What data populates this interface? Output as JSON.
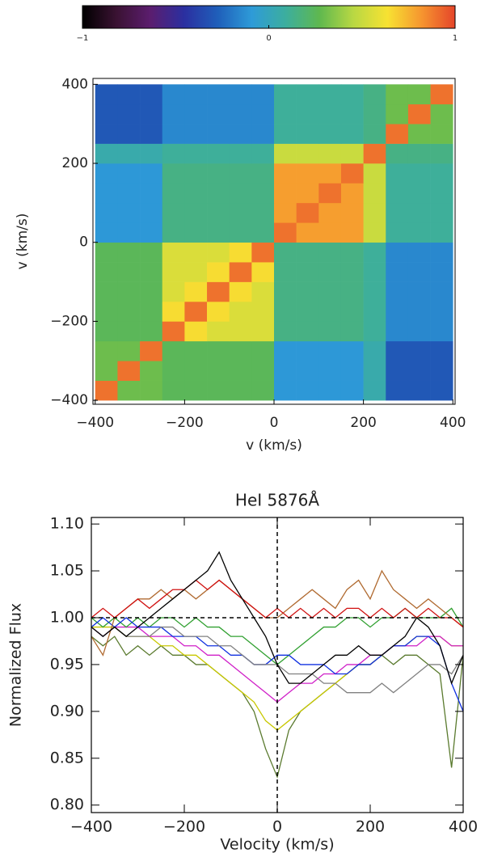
{
  "chart_data": [
    {
      "type": "colorbar",
      "xlim": [
        -1,
        1
      ],
      "xticks": [
        {
          "value": -1,
          "label": "−1"
        },
        0,
        1
      ],
      "colormap": [
        "#000000",
        "#3a1232",
        "#5b1d6e",
        "#2b2fa0",
        "#1f5fba",
        "#2e9bd8",
        "#3cae9e",
        "#5fb84f",
        "#b9d843",
        "#f7e232",
        "#f6962f",
        "#e5452a"
      ]
    },
    {
      "type": "heatmap",
      "xlabel": "v (km/s)",
      "ylabel": "v (km/s)",
      "xlim": [
        -405,
        405
      ],
      "ylim": [
        -410,
        415
      ],
      "xticks": [
        {
          "value": -400,
          "label": "−400"
        },
        {
          "value": -200,
          "label": "−200"
        },
        0,
        200,
        400
      ],
      "yticks": [
        {
          "value": -400,
          "label": "−400"
        },
        {
          "value": -200,
          "label": "−200"
        },
        0,
        200,
        400
      ],
      "x": [
        -375,
        -325,
        -275,
        -225,
        -175,
        -125,
        -75,
        -25,
        25,
        75,
        125,
        175,
        225,
        275,
        325,
        375
      ],
      "y": [
        -375,
        -325,
        -275,
        -225,
        -175,
        -125,
        -75,
        -25,
        25,
        75,
        125,
        175,
        225,
        275,
        325,
        375
      ],
      "values": [
        [
          0.9,
          0.3,
          0.3,
          0.25,
          0.25,
          0.25,
          0.25,
          0.25,
          -0.1,
          -0.1,
          -0.1,
          -0.1,
          0.05,
          -0.3,
          -0.3,
          -0.3
        ],
        [
          0.3,
          0.9,
          0.3,
          0.25,
          0.25,
          0.25,
          0.25,
          0.25,
          -0.1,
          -0.1,
          -0.1,
          -0.1,
          0.05,
          -0.3,
          -0.3,
          -0.3
        ],
        [
          0.3,
          0.3,
          0.9,
          0.25,
          0.25,
          0.25,
          0.25,
          0.25,
          -0.1,
          -0.1,
          -0.1,
          -0.1,
          0.05,
          -0.3,
          -0.3,
          -0.3
        ],
        [
          0.25,
          0.25,
          0.25,
          0.9,
          0.65,
          0.55,
          0.55,
          0.55,
          0.15,
          0.15,
          0.15,
          0.15,
          0.1,
          -0.15,
          -0.15,
          -0.15
        ],
        [
          0.25,
          0.25,
          0.25,
          0.65,
          0.9,
          0.65,
          0.55,
          0.55,
          0.15,
          0.15,
          0.15,
          0.15,
          0.1,
          -0.15,
          -0.15,
          -0.15
        ],
        [
          0.25,
          0.25,
          0.25,
          0.55,
          0.65,
          0.9,
          0.65,
          0.55,
          0.15,
          0.15,
          0.15,
          0.15,
          0.1,
          -0.15,
          -0.15,
          -0.15
        ],
        [
          0.25,
          0.25,
          0.25,
          0.55,
          0.55,
          0.65,
          0.9,
          0.65,
          0.15,
          0.15,
          0.15,
          0.15,
          0.1,
          -0.15,
          -0.15,
          -0.15
        ],
        [
          0.25,
          0.25,
          0.25,
          0.55,
          0.55,
          0.55,
          0.65,
          0.9,
          0.15,
          0.15,
          0.15,
          0.15,
          0.1,
          -0.15,
          -0.15,
          -0.15
        ],
        [
          -0.1,
          -0.1,
          -0.1,
          0.15,
          0.15,
          0.15,
          0.15,
          0.15,
          0.9,
          0.8,
          0.8,
          0.8,
          0.5,
          0.1,
          0.1,
          0.1
        ],
        [
          -0.1,
          -0.1,
          -0.1,
          0.15,
          0.15,
          0.15,
          0.15,
          0.15,
          0.8,
          0.9,
          0.8,
          0.8,
          0.5,
          0.1,
          0.1,
          0.1
        ],
        [
          -0.1,
          -0.1,
          -0.1,
          0.15,
          0.15,
          0.15,
          0.15,
          0.15,
          0.8,
          0.8,
          0.9,
          0.8,
          0.5,
          0.1,
          0.1,
          0.1
        ],
        [
          -0.1,
          -0.1,
          -0.1,
          0.15,
          0.15,
          0.15,
          0.15,
          0.15,
          0.8,
          0.8,
          0.8,
          0.9,
          0.5,
          0.1,
          0.1,
          0.1
        ],
        [
          0.05,
          0.05,
          0.05,
          0.1,
          0.1,
          0.1,
          0.1,
          0.1,
          0.5,
          0.5,
          0.5,
          0.5,
          0.9,
          0.15,
          0.15,
          0.15
        ],
        [
          -0.3,
          -0.3,
          -0.3,
          -0.15,
          -0.15,
          -0.15,
          -0.15,
          -0.15,
          0.1,
          0.1,
          0.1,
          0.1,
          0.15,
          0.9,
          0.3,
          0.3
        ],
        [
          -0.3,
          -0.3,
          -0.3,
          -0.15,
          -0.15,
          -0.15,
          -0.15,
          -0.15,
          0.1,
          0.1,
          0.1,
          0.1,
          0.15,
          0.3,
          0.9,
          0.3
        ],
        [
          -0.3,
          -0.3,
          -0.3,
          -0.15,
          -0.15,
          -0.15,
          -0.15,
          -0.15,
          0.1,
          0.1,
          0.1,
          0.1,
          0.15,
          0.3,
          0.3,
          0.9
        ]
      ]
    },
    {
      "type": "line",
      "title": "HeI 5876Å",
      "xlabel": "Velocity (km/s)",
      "ylabel": "Normalized Flux",
      "xlim": [
        -400,
        400
      ],
      "ylim": [
        0.792,
        1.107
      ],
      "xticks": [
        {
          "value": -400,
          "label": "−400"
        },
        {
          "value": -200,
          "label": "−200"
        },
        0,
        200,
        400
      ],
      "yticks": [
        {
          "value": 0.8,
          "label": "0.80"
        },
        0.85,
        {
          "value": 0.9,
          "label": "0.90"
        },
        0.95,
        {
          "value": 1.0,
          "label": "1.00"
        },
        1.05,
        {
          "value": 1.1,
          "label": "1.10"
        }
      ],
      "hline": 1.0,
      "vline": 0,
      "x": [
        -400,
        -375,
        -350,
        -325,
        -300,
        -275,
        -250,
        -225,
        -200,
        -175,
        -150,
        -125,
        -100,
        -75,
        -50,
        -25,
        0,
        25,
        50,
        75,
        100,
        125,
        150,
        175,
        200,
        225,
        250,
        275,
        300,
        325,
        350,
        375,
        400
      ],
      "series": [
        {
          "color": "#5a7a2e",
          "values": [
            0.98,
            0.97,
            0.98,
            0.96,
            0.97,
            0.96,
            0.97,
            0.96,
            0.96,
            0.95,
            0.95,
            0.94,
            0.93,
            0.92,
            0.9,
            0.86,
            0.83,
            0.88,
            0.9,
            0.91,
            0.92,
            0.93,
            0.94,
            0.95,
            0.95,
            0.96,
            0.95,
            0.96,
            0.96,
            0.95,
            0.94,
            0.84,
            0.96
          ]
        },
        {
          "color": "#c8c800",
          "values": [
            0.99,
            0.99,
            0.99,
            0.98,
            0.98,
            0.98,
            0.97,
            0.97,
            0.96,
            0.96,
            0.95,
            0.94,
            0.93,
            0.92,
            0.91,
            0.89,
            0.88,
            0.89,
            0.9,
            0.91,
            0.92,
            0.93,
            0.94,
            0.95,
            0.95,
            0.96,
            0.97,
            0.97,
            0.98,
            0.98,
            0.98,
            0.97,
            0.97
          ]
        },
        {
          "color": "#d020c8",
          "values": [
            0.99,
            0.98,
            0.99,
            0.99,
            0.99,
            0.98,
            0.98,
            0.98,
            0.97,
            0.97,
            0.96,
            0.96,
            0.95,
            0.94,
            0.93,
            0.92,
            0.91,
            0.92,
            0.93,
            0.93,
            0.94,
            0.94,
            0.95,
            0.95,
            0.96,
            0.96,
            0.97,
            0.97,
            0.97,
            0.98,
            0.98,
            0.97,
            0.97
          ]
        },
        {
          "color": "#30a030",
          "values": [
            1.0,
            0.99,
            1.0,
            0.99,
            1.0,
            0.99,
            1.0,
            1.0,
            0.99,
            1.0,
            0.99,
            0.99,
            0.98,
            0.98,
            0.97,
            0.96,
            0.95,
            0.96,
            0.97,
            0.98,
            0.99,
            0.99,
            1.0,
            1.0,
            0.99,
            1.0,
            1.0,
            1.01,
            1.0,
            1.0,
            1.0,
            1.01,
            0.99
          ]
        },
        {
          "color": "#1030e0",
          "values": [
            0.99,
            1.0,
            0.99,
            1.0,
            0.99,
            0.99,
            0.99,
            0.98,
            0.98,
            0.98,
            0.97,
            0.97,
            0.96,
            0.96,
            0.95,
            0.95,
            0.96,
            0.96,
            0.95,
            0.95,
            0.95,
            0.94,
            0.94,
            0.95,
            0.95,
            0.96,
            0.97,
            0.97,
            0.98,
            0.98,
            0.97,
            0.93,
            0.9
          ]
        },
        {
          "color": "#808080",
          "values": [
            0.99,
            0.98,
            0.99,
            0.98,
            0.98,
            0.98,
            0.99,
            0.99,
            0.98,
            0.98,
            0.98,
            0.97,
            0.97,
            0.96,
            0.95,
            0.95,
            0.95,
            0.94,
            0.94,
            0.94,
            0.93,
            0.93,
            0.92,
            0.92,
            0.92,
            0.93,
            0.92,
            0.93,
            0.94,
            0.95,
            0.95,
            0.94,
            0.96
          ]
        },
        {
          "color": "#b06a30",
          "values": [
            0.98,
            0.96,
            1.0,
            1.01,
            1.02,
            1.02,
            1.03,
            1.02,
            1.03,
            1.02,
            1.03,
            1.04,
            1.03,
            1.02,
            1.01,
            1.0,
            1.0,
            1.01,
            1.02,
            1.03,
            1.02,
            1.01,
            1.03,
            1.04,
            1.02,
            1.05,
            1.03,
            1.02,
            1.01,
            1.02,
            1.01,
            1.0,
            0.99
          ]
        },
        {
          "color": "#d01010",
          "values": [
            1.0,
            1.01,
            1.0,
            1.01,
            1.02,
            1.01,
            1.02,
            1.03,
            1.03,
            1.04,
            1.03,
            1.04,
            1.03,
            1.02,
            1.01,
            1.0,
            1.01,
            1.0,
            1.01,
            1.0,
            1.01,
            1.0,
            1.01,
            1.01,
            1.0,
            1.01,
            1.0,
            1.01,
            1.0,
            1.01,
            1.0,
            1.0,
            0.99
          ]
        },
        {
          "color": "#000000",
          "values": [
            0.99,
            0.98,
            0.99,
            0.98,
            0.99,
            1.0,
            1.01,
            1.02,
            1.03,
            1.04,
            1.05,
            1.07,
            1.04,
            1.02,
            1.0,
            0.98,
            0.95,
            0.93,
            0.93,
            0.94,
            0.95,
            0.96,
            0.96,
            0.97,
            0.96,
            0.96,
            0.97,
            0.98,
            1.0,
            0.99,
            0.97,
            0.93,
            0.96
          ]
        }
      ]
    }
  ]
}
